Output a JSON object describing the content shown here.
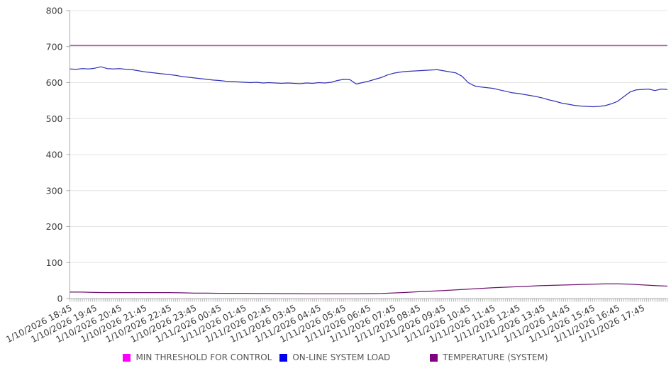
{
  "chart_data": {
    "type": "line",
    "title": "",
    "xlabel": "",
    "ylabel": "",
    "ylim": [
      0,
      800
    ],
    "y_ticks": [
      0,
      100,
      200,
      300,
      400,
      500,
      600,
      700,
      800
    ],
    "grid": "horizontal-only",
    "x_minor_tick_interval_hours": 0.0833,
    "x_tick_labels": [
      "1/10/2026 18:45",
      "1/10/2026 19:45",
      "1/10/2026 20:45",
      "1/10/2026 21:45",
      "1/10/2026 22:45",
      "1/10/2026 23:45",
      "1/11/2026 00:45",
      "1/11/2026 01:45",
      "1/11/2026 02:45",
      "1/11/2026 03:45",
      "1/11/2026 04:45",
      "1/11/2026 05:45",
      "1/11/2026 06:45",
      "1/11/2026 07:45",
      "1/11/2026 08:45",
      "1/11/2026 09:45",
      "1/11/2026 10:45",
      "1/11/2026 11:45",
      "1/11/2026 12:45",
      "1/11/2026 13:45",
      "1/11/2026 14:45",
      "1/11/2026 15:45",
      "1/11/2026 16:45",
      "1/11/2026 17:45"
    ],
    "legend_position": "bottom",
    "colors": {
      "grid": "#e4e4e4",
      "axis": "#a8a8a8",
      "minor_tick": "#b4b4b4",
      "tick_label": "#3d3d3d",
      "legend_text": "#555555"
    },
    "series": [
      {
        "name": "MIN THRESHOLD FOR CONTROL",
        "swatch_color": "#ff00ff",
        "line_color": "#cf3cc7",
        "line_width": 1.6,
        "start_hour": 0,
        "interval_hours": 24,
        "values": [
          703,
          703
        ]
      },
      {
        "name": "ON-LINE SYSTEM LOAD",
        "swatch_color": "#0000ee",
        "line_color": "#3232b8",
        "line_width": 1.25,
        "start_hour": 0,
        "interval_hours": 0.25,
        "values": [
          638,
          637,
          639,
          638,
          640,
          644,
          639,
          638,
          639,
          637,
          636,
          633,
          630,
          628,
          626,
          624,
          622,
          620,
          617,
          615,
          613,
          611,
          609,
          607,
          606,
          604,
          603,
          602,
          601,
          600,
          601,
          599,
          600,
          599,
          598,
          599,
          598,
          597,
          599,
          598,
          600,
          599,
          601,
          606,
          609,
          608,
          596,
          600,
          604,
          609,
          614,
          621,
          626,
          629,
          631,
          632,
          633,
          634,
          635,
          636,
          633,
          630,
          627,
          618,
          600,
          591,
          588,
          586,
          584,
          580,
          576,
          572,
          570,
          567,
          564,
          561,
          557,
          552,
          548,
          543,
          540,
          537,
          535,
          534,
          533,
          534,
          536,
          541,
          548,
          561,
          574,
          580,
          581,
          582,
          578,
          582,
          581
        ]
      },
      {
        "name": "TEMPERATURE (SYSTEM)",
        "swatch_color": "#800080",
        "line_color": "#6e1270",
        "line_width": 1.25,
        "start_hour": 0,
        "interval_hours": 0.5,
        "values": [
          18,
          18,
          17,
          16.5,
          16.5,
          16.5,
          16.5,
          16.5,
          16.5,
          16,
          15,
          15,
          14.5,
          14.5,
          14.5,
          14,
          14,
          13.5,
          13.5,
          13,
          13,
          13,
          13,
          13,
          13.5,
          14,
          15.5,
          17,
          19,
          20.5,
          22,
          24,
          26,
          28,
          30,
          31.5,
          33,
          34.5,
          36,
          37,
          38,
          39,
          40,
          41,
          41,
          40,
          38,
          36,
          34.5
        ]
      }
    ]
  }
}
